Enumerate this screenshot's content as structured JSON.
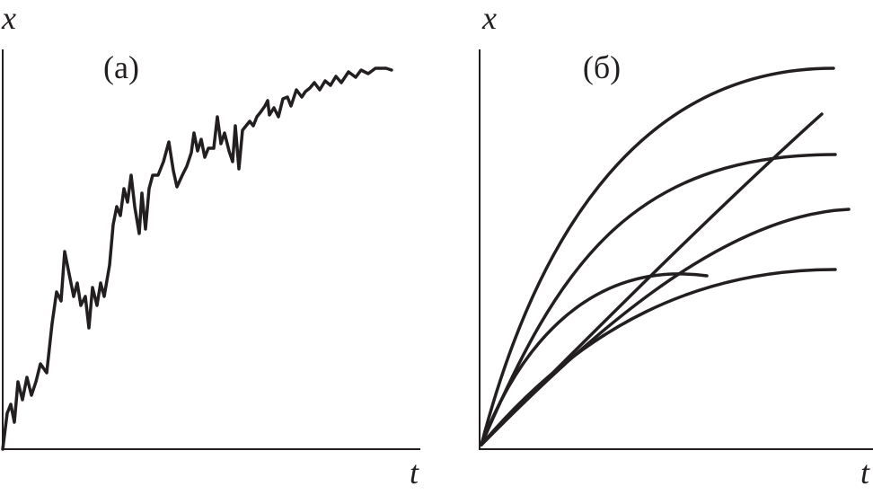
{
  "panels": [
    {
      "y_label": "x",
      "title": "(a)",
      "x_label": "t"
    },
    {
      "y_label": "x",
      "title": "(б)",
      "x_label": "t"
    }
  ]
}
